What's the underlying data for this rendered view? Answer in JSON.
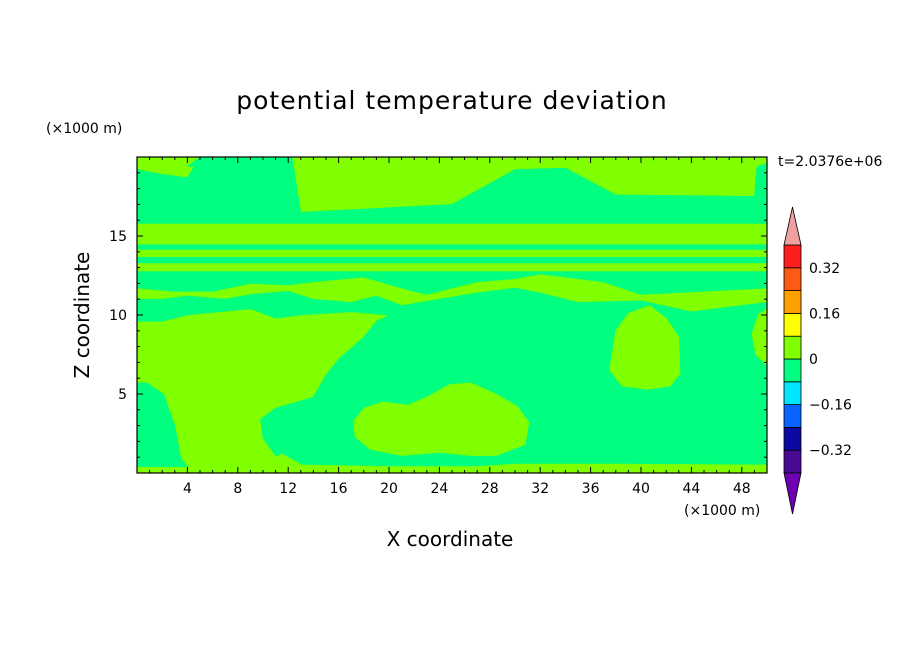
{
  "chart_data": {
    "type": "heatmap",
    "title": "potential temperature deviation",
    "xlabel": "X coordinate",
    "ylabel": "Z coordinate",
    "x_unit_label": "(×1000 m)",
    "y_unit_label": "(×1000 m)",
    "time_label": "t=2.0376e+06",
    "xlim": [
      0,
      50
    ],
    "ylim": [
      0,
      20
    ],
    "x_ticks": [
      4,
      8,
      12,
      16,
      20,
      24,
      28,
      32,
      36,
      40,
      44,
      48
    ],
    "y_ticks": [
      5,
      10,
      15
    ],
    "colorbar": {
      "levels": [
        -0.4,
        -0.32,
        -0.24,
        -0.16,
        -0.08,
        0,
        0.08,
        0.16,
        0.24,
        0.32,
        0.4
      ],
      "tick_labels": [
        "0.32",
        "0.16",
        "0",
        "−0.16",
        "−0.32"
      ],
      "tick_values": [
        0.32,
        0.16,
        0,
        -0.16,
        -0.32
      ],
      "colors": [
        "#4a0a96",
        "#0a0aa0",
        "#0a64ff",
        "#00e6ff",
        "#00ff80",
        "#80ff00",
        "#ffff00",
        "#ffa000",
        "#ff5a14",
        "#ff1e1e"
      ],
      "under_color": "#6e00b4",
      "over_color": "#f0a0a0"
    },
    "field_colors": {
      "negative_small": "#00ff80",
      "positive_small": "#80ff00"
    }
  }
}
